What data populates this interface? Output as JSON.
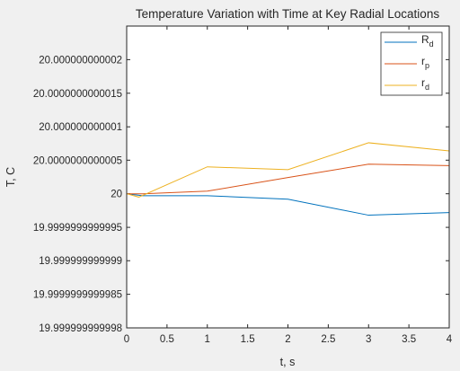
{
  "chart_data": {
    "type": "line",
    "title": "Temperature Variation with Time at Key Radial Locations",
    "xlabel": "t, s",
    "ylabel": "T, C",
    "xlim": [
      0,
      4
    ],
    "ylim": [
      19.999999999998,
      20.0000000000025
    ],
    "x_ticks": [
      0,
      0.5,
      1,
      1.5,
      2,
      2.5,
      3,
      3.5,
      4
    ],
    "x_tick_labels": [
      "0",
      "0.5",
      "1",
      "1.5",
      "2",
      "2.5",
      "3",
      "3.5",
      "4"
    ],
    "y_ticks": [
      19.999999999998,
      19.9999999999985,
      19.999999999999,
      19.9999999999995,
      20,
      20.0000000000005,
      20.000000000001,
      20.0000000000015,
      20.000000000002
    ],
    "y_tick_labels": [
      "19.999999999998",
      "19.9999999999985",
      "19.999999999999",
      "19.9999999999995",
      "20",
      "20.0000000000005",
      "20.000000000001",
      "20.0000000000015",
      "20.000000000002"
    ],
    "grid": false,
    "legend_position": "top-right",
    "series": [
      {
        "name": "R",
        "name_sub": "d",
        "color": "#0072bd",
        "x": [
          0,
          0.2,
          1,
          2,
          3,
          4
        ],
        "y": [
          20.0,
          19.99999999999997,
          19.99999999999997,
          19.99999999999992,
          19.99999999999968,
          19.99999999999972
        ]
      },
      {
        "name": "r",
        "name_sub": "p",
        "color": "#d95319",
        "x": [
          0,
          0.2,
          1,
          2,
          3,
          4
        ],
        "y": [
          20.0,
          20.0,
          20.00000000000004,
          20.00000000000024,
          20.00000000000044,
          20.00000000000042
        ]
      },
      {
        "name": "r",
        "name_sub": "d",
        "color": "#edb120",
        "x": [
          0,
          0.15,
          1,
          2,
          3,
          4
        ],
        "y": [
          20.0,
          19.99999999999995,
          20.0000000000004,
          20.00000000000036,
          20.00000000000076,
          20.00000000000064
        ]
      }
    ]
  }
}
